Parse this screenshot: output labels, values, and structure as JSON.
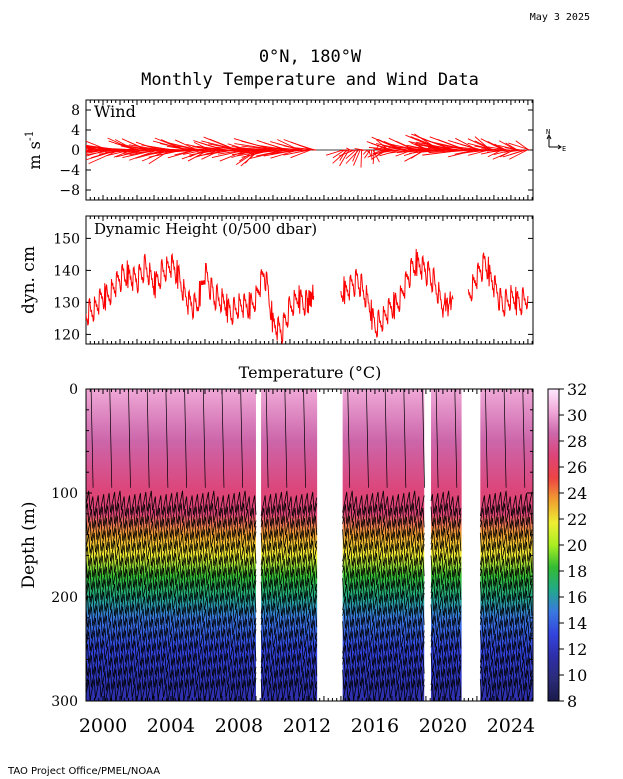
{
  "date_stamp": "May  3 2025",
  "title_line1": "0°N, 180°W",
  "title_line2": "Monthly Temperature and Wind Data",
  "footer": "TAO Project Office/PMEL/NOAA",
  "compass": {
    "north": "N",
    "east": "E"
  },
  "chart_data": [
    {
      "type": "line",
      "panel": "wind",
      "title": "Wind",
      "ylabel": "m s",
      "ylabel_exp": "-1",
      "ylim": [
        -10,
        10
      ],
      "yticks": [
        8,
        4,
        0,
        -4,
        -8
      ],
      "yticklabels": [
        "8",
        "4",
        "0",
        "−4",
        "−8"
      ],
      "xlim": [
        1999.0,
        2025.3
      ],
      "style": "stick vectors (mostly westward/easterly trades, magnitude 4-9 m/s)",
      "gaps": [
        [
          2012.6,
          2014.1
        ]
      ],
      "sample_years": [
        2000,
        2001,
        2002,
        2003,
        2004,
        2005,
        2006,
        2007,
        2008,
        2009,
        2010,
        2011,
        2012,
        2014,
        2015,
        2016,
        2017,
        2018,
        2019,
        2020,
        2021,
        2022,
        2023,
        2024
      ],
      "sample_u": [
        -6,
        -8,
        -5,
        -7,
        -6,
        -7,
        -5,
        -6,
        -8,
        -4,
        -9,
        -7,
        -6,
        -3,
        -2,
        1,
        -5,
        -6,
        -4,
        -8,
        -9,
        -6,
        -5,
        -4
      ],
      "sample_v": [
        0.5,
        -1,
        1,
        0,
        -1,
        1,
        -0.5,
        0,
        1,
        -2,
        0.5,
        0,
        0.5,
        -1,
        -2,
        -1,
        0.5,
        1,
        -0.5,
        2,
        1,
        0.5,
        1,
        0
      ]
    },
    {
      "type": "line",
      "panel": "dynamic_height",
      "title": "Dynamic Height (0/500 dbar)",
      "ylabel": "dyn. cm",
      "ylim": [
        117,
        157
      ],
      "yticks": [
        150,
        140,
        130,
        120
      ],
      "xlim": [
        1999.0,
        2025.3
      ],
      "segments": [
        {
          "x": [
            1999.0,
            1999.5,
            2000.0,
            2000.5,
            2001.0,
            2001.5,
            2002.0,
            2002.5,
            2003.0,
            2003.5,
            2004.0,
            2004.5,
            2005.0,
            2005.5,
            2006.0,
            2006.5,
            2007.0,
            2007.5,
            2008.0,
            2008.5,
            2009.0,
            2009.5,
            2010.0,
            2010.5,
            2011.0,
            2011.5,
            2012.0,
            2012.4
          ],
          "y": [
            127,
            128,
            131,
            134,
            137,
            139,
            137,
            141,
            135,
            140,
            141,
            138,
            130,
            128,
            140,
            132,
            130,
            127,
            129,
            128,
            132,
            139,
            124,
            121,
            128,
            131,
            130,
            132
          ]
        },
        {
          "x": [
            2014.0,
            2014.5,
            2015.0,
            2015.5,
            2016.0,
            2016.5,
            2017.0,
            2017.5,
            2018.0,
            2018.5,
            2019.0,
            2019.5,
            2020.0,
            2020.6
          ],
          "y": [
            133,
            135,
            137,
            131,
            123,
            125,
            128,
            132,
            138,
            143,
            140,
            136,
            128,
            131
          ]
        },
        {
          "x": [
            2021.5,
            2022.0,
            2022.5,
            2023.0,
            2023.5,
            2024.0,
            2024.5,
            2025.0
          ],
          "y": [
            133,
            138,
            142,
            136,
            129,
            131,
            130,
            132
          ]
        }
      ]
    },
    {
      "type": "heatmap",
      "panel": "temperature",
      "title": "Temperature (°C)",
      "ylabel": "Depth (m)",
      "ylim": [
        300,
        0
      ],
      "yticks": [
        0,
        100,
        200,
        300
      ],
      "xlim": [
        1999.0,
        2025.3
      ],
      "xticks": [
        2000,
        2004,
        2008,
        2012,
        2016,
        2020,
        2024
      ],
      "data_periods": [
        [
          1999.0,
          2009.0
        ],
        [
          2009.3,
          2012.6
        ],
        [
          2014.1,
          2018.9
        ],
        [
          2019.3,
          2021.1
        ],
        [
          2022.2,
          2025.3
        ]
      ],
      "depths": [
        0,
        50,
        100,
        120,
        140,
        160,
        180,
        200,
        220,
        250,
        300
      ],
      "typical_profile_C": [
        29.5,
        29.0,
        27.5,
        26.0,
        24.0,
        21.0,
        18.5,
        16.5,
        15.0,
        13.5,
        12.0
      ],
      "colorbar": {
        "min": 8,
        "max": 32,
        "ticks": [
          8,
          10,
          12,
          14,
          16,
          18,
          20,
          22,
          24,
          26,
          28,
          30,
          32
        ],
        "colors": [
          "#1a1a4a",
          "#2b2b7a",
          "#2e2ea8",
          "#3344dd",
          "#3a78e0",
          "#22aa88",
          "#33bb33",
          "#aaee22",
          "#eeee33",
          "#f0a030",
          "#ee4444",
          "#dd4477",
          "#cc66aa",
          "#f0a8d8",
          "#ffe8ff"
        ]
      }
    }
  ]
}
